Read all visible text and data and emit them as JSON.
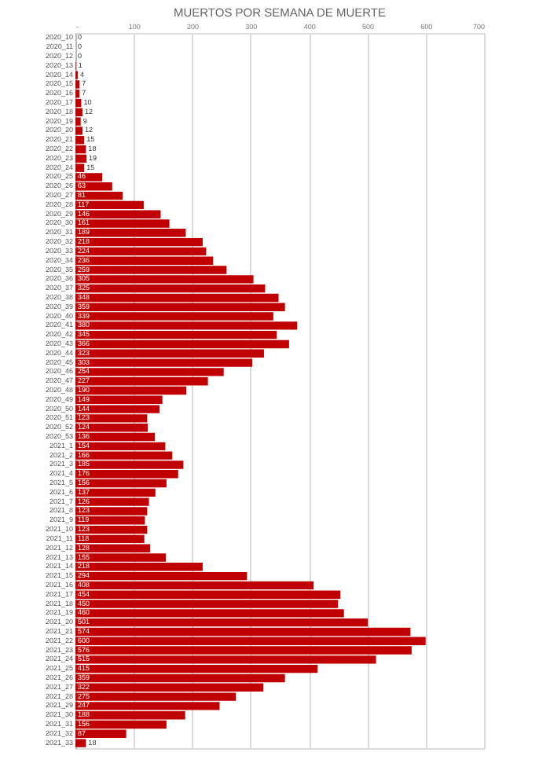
{
  "chart_data": {
    "type": "bar",
    "orientation": "horizontal",
    "title": "MUERTOS POR SEMANA DE MUERTE",
    "categories": [
      "2020_10",
      "2020_11",
      "2020_12",
      "2020_13",
      "2020_14",
      "2020_15",
      "2020_16",
      "2020_17",
      "2020_18",
      "2020_19",
      "2020_20",
      "2020_21",
      "2020_22",
      "2020_23",
      "2020_24",
      "2020_25",
      "2020_26",
      "2020_27",
      "2020_28",
      "2020_29",
      "2020_30",
      "2020_31",
      "2020_32",
      "2020_33",
      "2020_34",
      "2020_35",
      "2020_36",
      "2020_37",
      "2020_38",
      "2020_39",
      "2020_40",
      "2020_41",
      "2020_42",
      "2020_43",
      "2020_44",
      "2020_45",
      "2020_46",
      "2020_47",
      "2020_48",
      "2020_49",
      "2020_50",
      "2020_51",
      "2020_52",
      "2020_53",
      "2021_1",
      "2021_2",
      "2021_3",
      "2021_4",
      "2021_5",
      "2021_6",
      "2021_7",
      "2021_8",
      "2021_9",
      "2021_10",
      "2021_11",
      "2021_12",
      "2021_13",
      "2021_14",
      "2021_15",
      "2021_16",
      "2021_17",
      "2021_18",
      "2021_19",
      "2021_20",
      "2021_21",
      "2021_22",
      "2021_23",
      "2021_24",
      "2021_25",
      "2021_26",
      "2021_27",
      "2021_28",
      "2021_29",
      "2021_30",
      "2021_31",
      "2021_32",
      "2021_33"
    ],
    "values": [
      0,
      0,
      0,
      1,
      4,
      7,
      7,
      10,
      12,
      9,
      12,
      15,
      18,
      19,
      15,
      46,
      63,
      81,
      117,
      146,
      161,
      189,
      218,
      224,
      236,
      259,
      305,
      325,
      348,
      359,
      339,
      380,
      345,
      366,
      323,
      303,
      254,
      227,
      190,
      149,
      144,
      123,
      124,
      136,
      154,
      166,
      185,
      176,
      156,
      137,
      126,
      123,
      119,
      123,
      118,
      128,
      155,
      218,
      294,
      408,
      454,
      450,
      460,
      501,
      574,
      600,
      576,
      515,
      415,
      359,
      322,
      275,
      247,
      188,
      156,
      87,
      18
    ],
    "color": "#c00000",
    "data_labels": true,
    "xlim": [
      0,
      700
    ],
    "xticks": [
      {
        "value": 0,
        "label": "-"
      },
      100,
      200,
      300,
      400,
      500,
      600,
      700
    ],
    "grid": "x"
  }
}
